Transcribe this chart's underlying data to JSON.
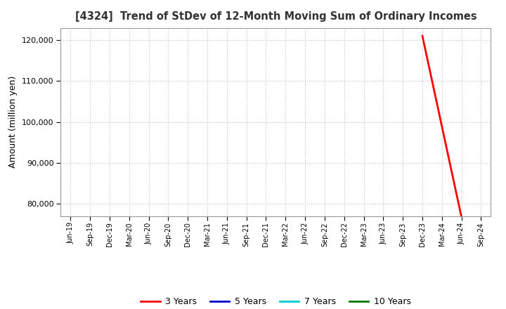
{
  "title": "[4324]  Trend of StDev of 12-Month Moving Sum of Ordinary Incomes",
  "ylabel": "Amount (million yen)",
  "ylim": [
    77000,
    123000
  ],
  "yticks": [
    80000,
    90000,
    100000,
    110000,
    120000
  ],
  "background_color": "#ffffff",
  "grid_color": "#bbbbbb",
  "series": {
    "3 Years": {
      "color": "#ff0000",
      "data": {
        "Dec-23": 121000,
        "Jun-24": 76800
      }
    },
    "5 Years": {
      "color": "#0000cc",
      "data": {}
    },
    "7 Years": {
      "color": "#00cccc",
      "data": {}
    },
    "10 Years": {
      "color": "#007700",
      "data": {}
    }
  },
  "x_tick_labels": [
    "Jun-19",
    "Sep-19",
    "Dec-19",
    "Mar-20",
    "Jun-20",
    "Sep-20",
    "Dec-20",
    "Mar-21",
    "Jun-21",
    "Sep-21",
    "Dec-21",
    "Mar-22",
    "Jun-22",
    "Sep-22",
    "Dec-22",
    "Mar-23",
    "Jun-23",
    "Sep-23",
    "Dec-23",
    "Mar-24",
    "Jun-24",
    "Sep-24"
  ],
  "legend_labels": [
    "3 Years",
    "5 Years",
    "7 Years",
    "10 Years"
  ],
  "legend_colors": [
    "#ff0000",
    "#0000cc",
    "#00cccc",
    "#007700"
  ]
}
